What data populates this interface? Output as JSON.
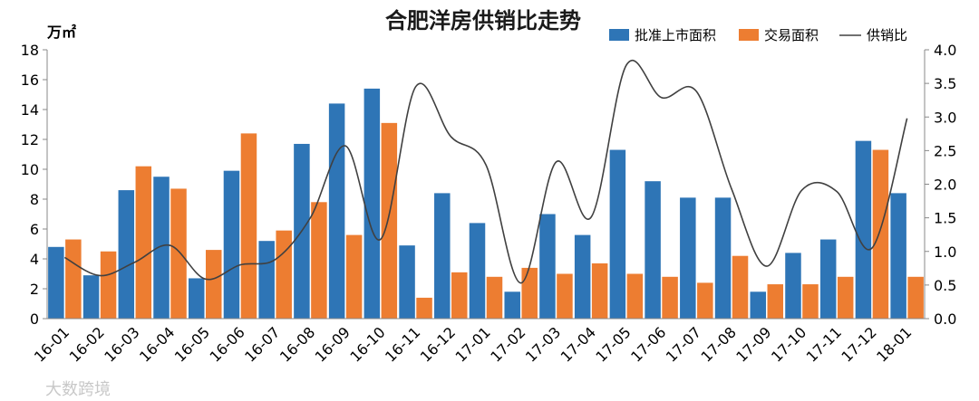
{
  "chart_data": {
    "type": "bar",
    "title": "合肥洋房供销比走势",
    "unit_left": "万㎡",
    "categories": [
      "16-01",
      "16-02",
      "16-03",
      "16-04",
      "16-05",
      "16-06",
      "16-07",
      "16-08",
      "16-09",
      "16-10",
      "16-11",
      "16-12",
      "17-01",
      "17-02",
      "17-03",
      "17-04",
      "17-05",
      "17-06",
      "17-07",
      "17-08",
      "17-09",
      "17-10",
      "17-11",
      "17-12",
      "18-01"
    ],
    "y_left": {
      "min": 0,
      "max": 18,
      "step": 2,
      "ticks": [
        "0",
        "2",
        "4",
        "6",
        "8",
        "10",
        "12",
        "14",
        "16",
        "18"
      ]
    },
    "y_right": {
      "min": 0,
      "max": 4,
      "step": 0.5,
      "ticks": [
        "0.0",
        "0.5",
        "1.0",
        "1.5",
        "2.0",
        "2.5",
        "3.0",
        "3.5",
        "4.0"
      ]
    },
    "series": [
      {
        "name": "批准上市面积",
        "type": "bar",
        "axis": "left",
        "color": "#2e75b6",
        "values": [
          4.8,
          2.9,
          8.6,
          9.5,
          2.7,
          9.9,
          5.2,
          11.7,
          14.4,
          15.4,
          4.9,
          8.4,
          6.4,
          1.8,
          7.0,
          5.6,
          11.3,
          9.2,
          8.1,
          8.1,
          1.8,
          4.4,
          5.3,
          11.9,
          8.4
        ]
      },
      {
        "name": "交易面积",
        "type": "bar",
        "axis": "left",
        "color": "#ed7d31",
        "values": [
          5.3,
          4.5,
          10.2,
          8.7,
          4.6,
          12.4,
          5.9,
          7.8,
          5.6,
          13.1,
          1.4,
          3.1,
          2.8,
          3.4,
          3.0,
          3.7,
          3.0,
          2.8,
          2.4,
          4.2,
          2.3,
          2.3,
          2.8,
          11.3,
          2.8
        ]
      },
      {
        "name": "供销比",
        "type": "line",
        "axis": "right",
        "color": "#404040",
        "values": [
          0.91,
          0.64,
          0.84,
          1.09,
          0.59,
          0.8,
          0.88,
          1.5,
          2.57,
          1.18,
          3.45,
          2.71,
          2.29,
          0.53,
          2.33,
          1.51,
          3.77,
          3.29,
          3.38,
          1.93,
          0.78,
          1.91,
          1.89,
          1.05,
          2.98
        ]
      }
    ],
    "legend": [
      "批准上市面积",
      "交易面积",
      "供销比"
    ],
    "legend_position": "top-right",
    "grid": false
  },
  "watermark": "大数跨境"
}
